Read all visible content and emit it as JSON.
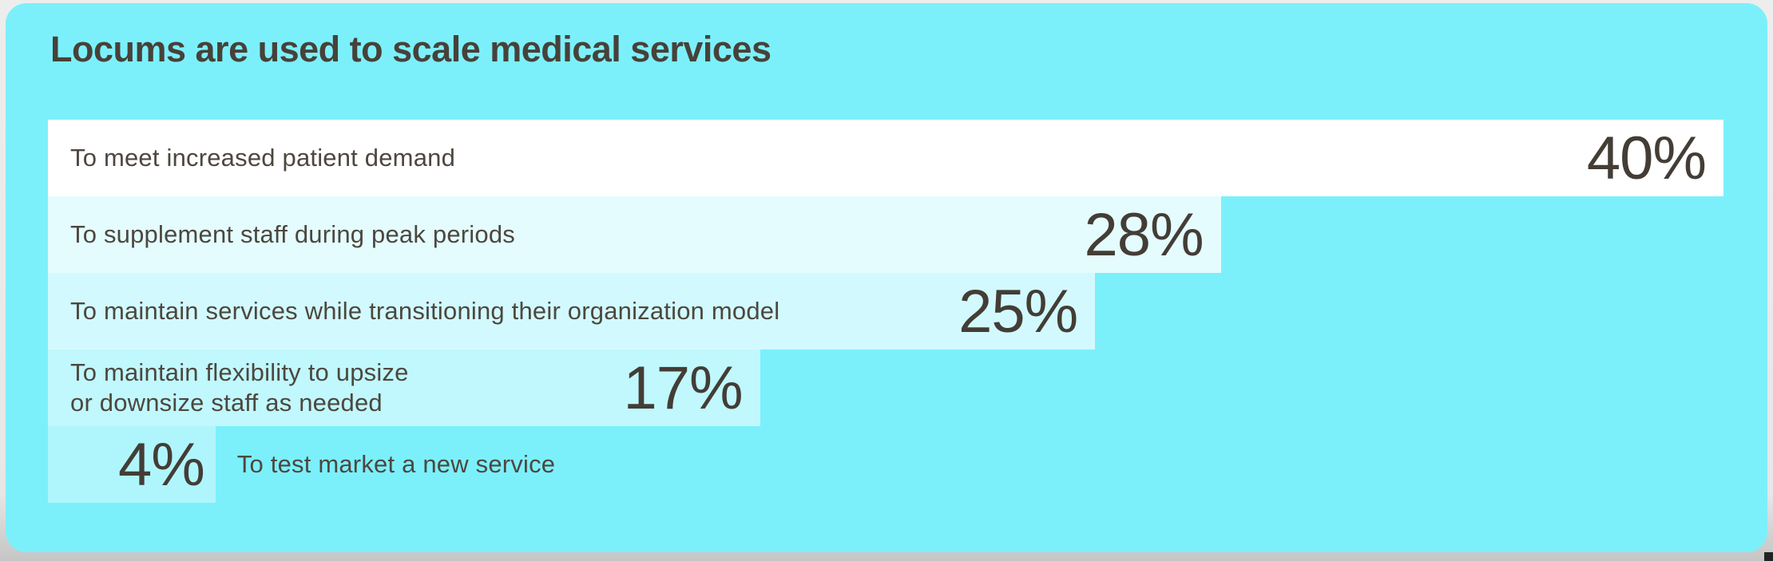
{
  "page": {
    "title": "Locums are used to scale medical services"
  },
  "colors": {
    "panel_bg": "#7bf0fb",
    "page_bg": "#e7e7e7",
    "bottom_strip": "#cacaca",
    "corner_mark": "#222222",
    "title_text": "#474139",
    "label_text": "#4d473f",
    "value_text": "#433d36",
    "bar_max_fill": "#ffffff"
  },
  "chart_data": {
    "type": "bar",
    "orientation": "horizontal",
    "title": "Locums are used to scale medical services",
    "categories": [
      "To meet increased patient demand",
      "To supplement staff during peak periods",
      "To maintain services while transitioning their organization model",
      "To maintain flexibility to upsize or downsize staff as needed",
      "To test market a new service"
    ],
    "values": [
      40,
      28,
      25,
      17,
      4
    ],
    "value_labels": [
      "40%",
      "28%",
      "25%",
      "17%",
      "4%"
    ],
    "xlim": [
      0,
      40
    ],
    "value_label_position": "inside-right",
    "category_label_position": "inside-left (last bar: outside-right)",
    "grid": false,
    "legend": false
  },
  "bars": [
    {
      "label": "To meet increased patient demand",
      "pct": "40%",
      "value": 40,
      "fill_opacity": 1
    },
    {
      "label": "To supplement staff during peak periods",
      "pct": "28%",
      "value": 28,
      "fill_opacity": 0.8
    },
    {
      "label": "To maintain services while transitioning their organization model",
      "pct": "25%",
      "value": 25,
      "fill_opacity": 0.66
    },
    {
      "label": "To maintain flexibility to upsize\nor downsize staff as needed",
      "pct": "17%",
      "value": 17,
      "fill_opacity": 0.52
    },
    {
      "label": "To test market a new service",
      "pct": "4%",
      "value": 4,
      "fill_opacity": 0.4
    }
  ]
}
